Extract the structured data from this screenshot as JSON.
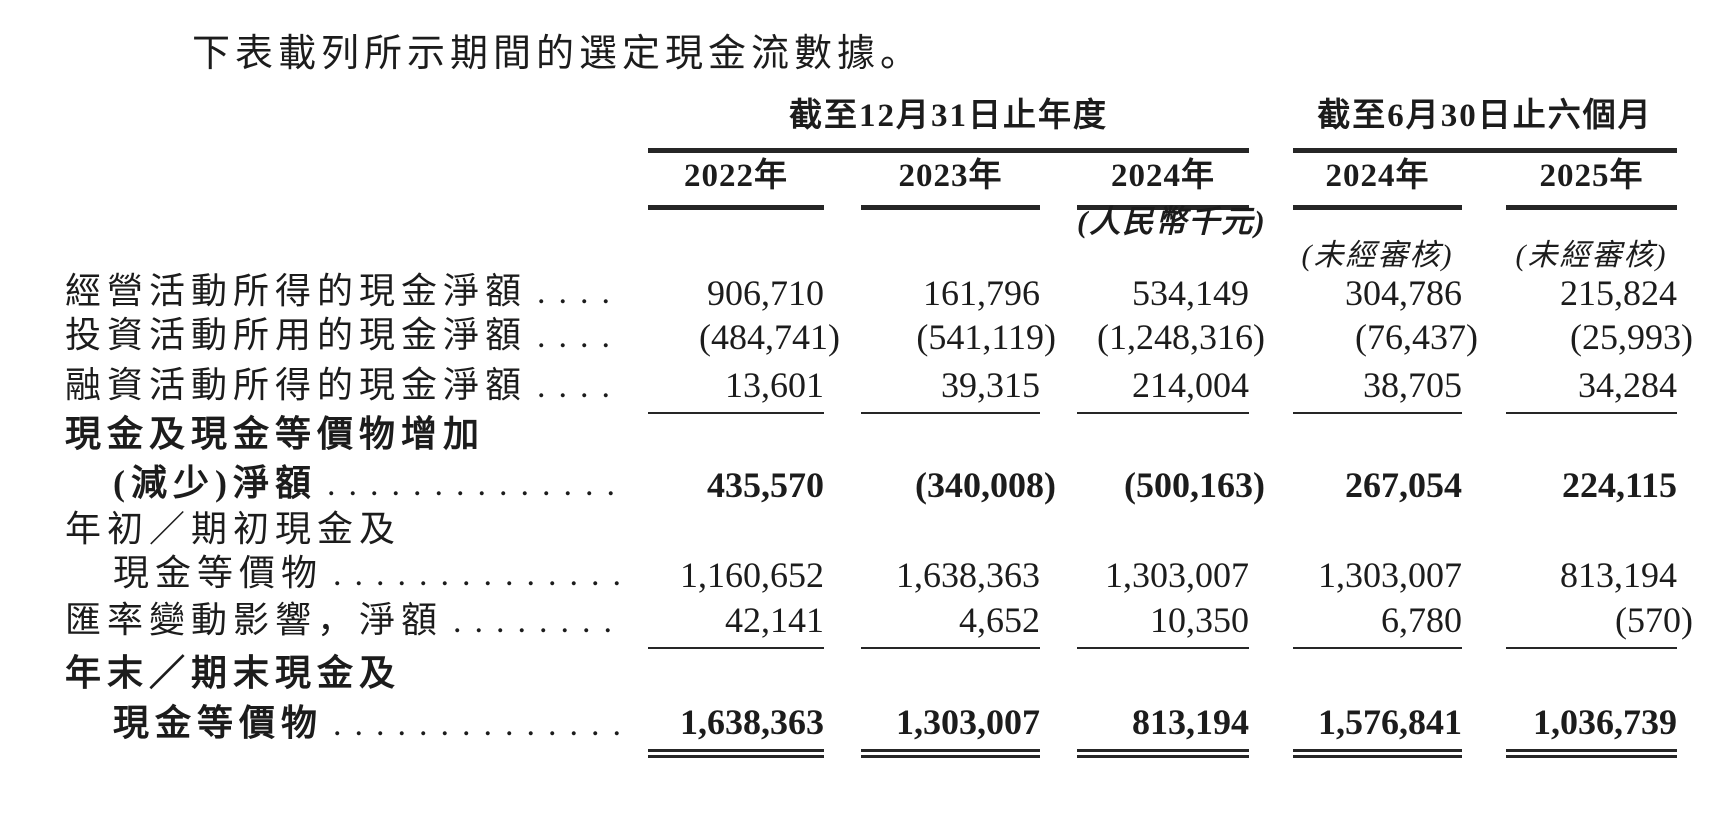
{
  "page": {
    "intro": "下表載列所示期間的選定現金流數據。"
  },
  "colors": {
    "text": "#1c1c1c",
    "rule": "#262626",
    "background": "#ffffff"
  },
  "table": {
    "column_groups": [
      {
        "label": "截至12月31日止年度",
        "span": 3
      },
      {
        "label": "截至6月30日止六個月",
        "span": 2
      }
    ],
    "columns": [
      "2022年",
      "2023年",
      "2024年",
      "2024年",
      "2025年"
    ],
    "unit_note": "(人民幣千元)",
    "unaudited_note": "(未經審核)",
    "rows": [
      {
        "label": "經營活動所得的現金淨額",
        "dots": "....",
        "bold": false,
        "rule_below": "none",
        "values": [
          "906,710",
          "161,796",
          "534,149",
          "304,786",
          "215,824"
        ]
      },
      {
        "label": "投資活動所用的現金淨額",
        "dots": "....",
        "bold": false,
        "rule_below": "none",
        "values": [
          "(484,741)",
          "(541,119)",
          "(1,248,316)",
          "(76,437)",
          "(25,993)"
        ]
      },
      {
        "label": "融資活動所得的現金淨額",
        "dots": "....",
        "bold": false,
        "rule_below": "single",
        "values": [
          "13,601",
          "39,315",
          "214,004",
          "38,705",
          "34,284"
        ]
      },
      {
        "label": "現金及現金等價物增加",
        "label2": "(減少)淨額",
        "dots": "..............",
        "bold": true,
        "rule_below": "none",
        "values": [
          "435,570",
          "(340,008)",
          "(500,163)",
          "267,054",
          "224,115"
        ]
      },
      {
        "label": "年初／期初現金及",
        "label2": "現金等價物",
        "dots": "..............",
        "bold": false,
        "rule_below": "none",
        "values": [
          "1,160,652",
          "1,638,363",
          "1,303,007",
          "1,303,007",
          "813,194"
        ]
      },
      {
        "label": "匯率變動影響，淨額",
        "dots": "........",
        "bold": false,
        "rule_below": "single",
        "values": [
          "42,141",
          "4,652",
          "10,350",
          "6,780",
          "(570)"
        ]
      },
      {
        "label": "年末／期末現金及",
        "label2": "現金等價物",
        "dots": "..............",
        "bold": true,
        "rule_below": "double",
        "values": [
          "1,638,363",
          "1,303,007",
          "813,194",
          "1,576,841",
          "1,036,739"
        ]
      }
    ]
  }
}
